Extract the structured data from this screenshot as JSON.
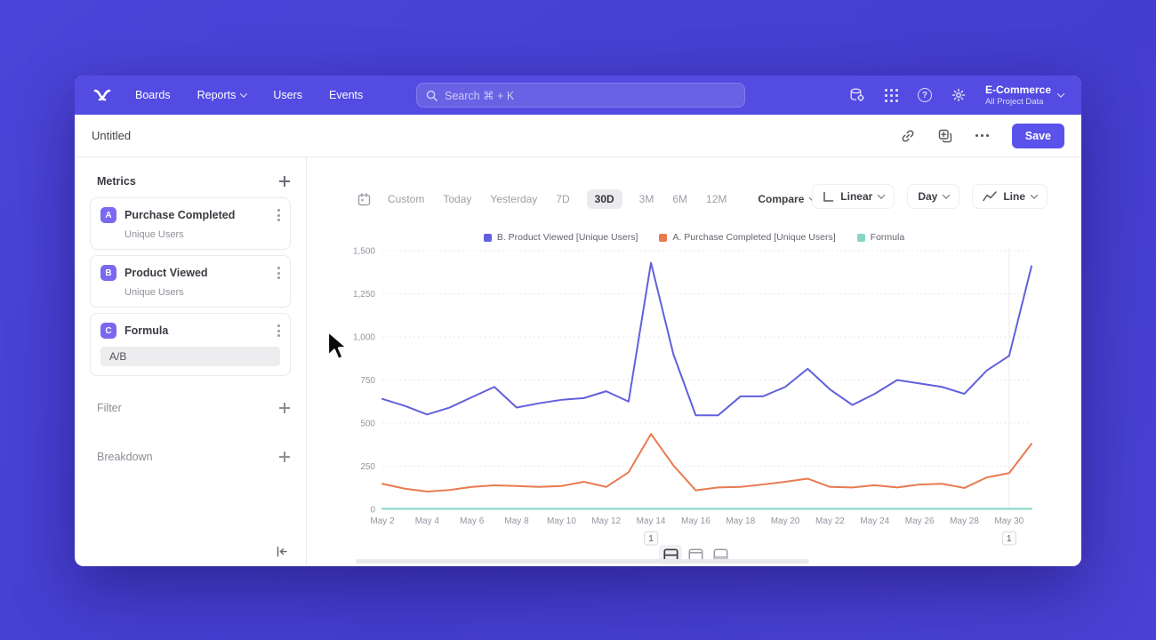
{
  "colors": {
    "backdrop": "#4a41d3",
    "navbar": "#534be2",
    "accent": "#5a52ea",
    "series_purple": "#6160dd",
    "series_orange": "#e87b50",
    "series_teal": "#85d6c6"
  },
  "nav": {
    "items": [
      "Boards",
      "Reports",
      "Users",
      "Events"
    ],
    "search_placeholder": "Search  ⌘ + K",
    "help_glyph": "?",
    "project_name": "E-Commerce",
    "project_sub": "All Project Data"
  },
  "titlebar": {
    "title": "Untitled",
    "save_label": "Save"
  },
  "sidebar": {
    "metrics_header": "Metrics",
    "metrics": [
      {
        "letter": "A",
        "name": "Purchase Completed",
        "sub": "Unique Users"
      },
      {
        "letter": "B",
        "name": "Product Viewed",
        "sub": "Unique Users"
      },
      {
        "letter": "C",
        "name": "Formula",
        "formula": "A/B"
      }
    ],
    "filter_label": "Filter",
    "breakdown_label": "Breakdown"
  },
  "controls": {
    "ranges": [
      "Custom",
      "Today",
      "Yesterday",
      "7D",
      "30D",
      "3M",
      "6M",
      "12M"
    ],
    "active_range": "30D",
    "compare_label": "Compare",
    "scale_label": "Linear",
    "interval_label": "Day",
    "chart_type_label": "Line"
  },
  "chart_data": {
    "type": "line",
    "title": "",
    "xlabel": "",
    "ylabel": "",
    "ylim": [
      0,
      1500
    ],
    "yticks": [
      "0",
      "250",
      "500",
      "750",
      "1,000",
      "1,250",
      "1,500"
    ],
    "ytick_values": [
      0,
      250,
      500,
      750,
      1000,
      1250,
      1500
    ],
    "grid": "dotted-horizontal",
    "legend_position": "top-center",
    "x": [
      "May 2",
      "May 3",
      "May 4",
      "May 5",
      "May 6",
      "May 7",
      "May 8",
      "May 9",
      "May 10",
      "May 11",
      "May 12",
      "May 13",
      "May 14",
      "May 15",
      "May 16",
      "May 17",
      "May 18",
      "May 19",
      "May 20",
      "May 21",
      "May 22",
      "May 23",
      "May 24",
      "May 25",
      "May 26",
      "May 27",
      "May 28",
      "May 29",
      "May 30",
      "May 31"
    ],
    "xtick_labels": [
      "May 2",
      "May 4",
      "May 6",
      "May 8",
      "May 10",
      "May 12",
      "May 14",
      "May 16",
      "May 18",
      "May 20",
      "May 22",
      "May 24",
      "May 26",
      "May 28",
      "May 30"
    ],
    "series": [
      {
        "name": "B. Product Viewed [Unique Users]",
        "color": "#6160dd",
        "values": [
          640,
          600,
          550,
          590,
          650,
          710,
          590,
          615,
          635,
          645,
          685,
          625,
          1430,
          900,
          545,
          545,
          655,
          655,
          710,
          815,
          695,
          605,
          670,
          750,
          730,
          710,
          670,
          805,
          890,
          1410
        ]
      },
      {
        "name": "A. Purchase Completed [Unique Users]",
        "color": "#e87b50",
        "values": [
          148,
          120,
          103,
          112,
          130,
          139,
          135,
          130,
          135,
          160,
          130,
          215,
          437,
          255,
          110,
          127,
          130,
          144,
          160,
          178,
          130,
          127,
          140,
          127,
          144,
          148,
          124,
          185,
          210,
          380
        ]
      },
      {
        "name": "Formula",
        "color": "#85d6c6",
        "values": [
          3,
          3,
          3,
          3,
          3,
          3,
          3,
          3,
          3,
          3,
          3,
          3,
          3,
          3,
          3,
          3,
          3,
          3,
          3,
          3,
          3,
          3,
          3,
          3,
          3,
          3,
          3,
          3,
          3,
          3
        ]
      }
    ],
    "annotations": [
      {
        "label": "1",
        "x": "May 14"
      },
      {
        "label": "1",
        "x": "May 30"
      }
    ],
    "vertical_gridline_x": "May 30"
  },
  "view_toggles": [
    "split-view",
    "chart-only",
    "table-only"
  ]
}
